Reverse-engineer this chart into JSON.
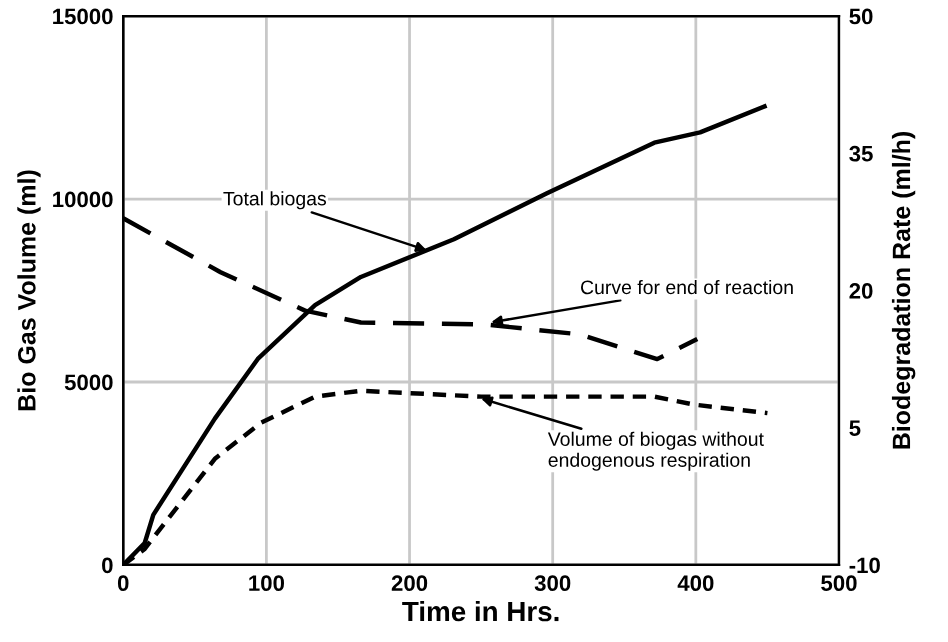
{
  "chart_data": {
    "type": "line",
    "xlabel": "Time in Hrs.",
    "ylabel": "Bio Gas Volume (ml)",
    "y2label": "Biodegradation Rate (ml/h)",
    "xlim": [
      0,
      500
    ],
    "xticks": [
      0,
      100,
      200,
      300,
      400,
      500
    ],
    "ylim": [
      0,
      15000
    ],
    "yticks": [
      0,
      5000,
      10000,
      15000
    ],
    "y2lim": [
      -10,
      50
    ],
    "y2ticks": [
      -10,
      5,
      20,
      35,
      50
    ],
    "grid": true,
    "legend": false,
    "marker": "none",
    "series": [
      {
        "color": "#000000",
        "line_style": "solid",
        "x": [
          0,
          15,
          21,
          64,
          94,
          134,
          166,
          231,
          296,
          371,
          403,
          448
        ],
        "values": [
          0,
          600,
          1370,
          4000,
          5630,
          7100,
          7870,
          8900,
          10160,
          11540,
          11820,
          12530
        ]
      },
      {
        "color": "#000000",
        "line_style": "dashed",
        "axis": "y2",
        "x": [
          0,
          68,
          127,
          166,
          252,
          319,
          373,
          401
        ],
        "values": [
          27.9,
          22.0,
          17.8,
          16.5,
          16.3,
          15.2,
          12.5,
          14.7
        ]
      },
      {
        "color": "#000000",
        "line_style": "dotted",
        "x": [
          0,
          15,
          64,
          96,
          134,
          166,
          250,
          371,
          399,
          450
        ],
        "values": [
          0,
          440,
          2900,
          3880,
          4600,
          4760,
          4600,
          4600,
          4380,
          4150
        ]
      }
    ],
    "annotations": [
      {
        "text": "Total biogas",
        "x": 212,
        "y": 8600
      },
      {
        "text": "Curve for end of reaction",
        "x": 257,
        "y": 6630
      },
      {
        "text": "Volume of biogas without\nendogenous respiration",
        "x": 250,
        "y": 4550
      }
    ]
  }
}
